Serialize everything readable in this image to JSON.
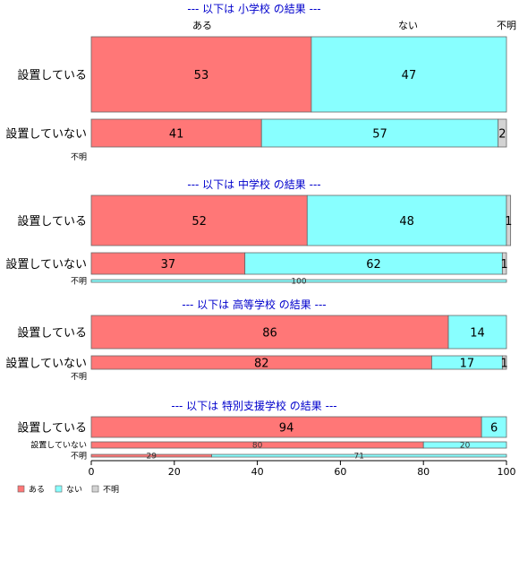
{
  "chart_data": {
    "type": "bar",
    "orientation": "horizontal",
    "stacked": true,
    "xlim": [
      0,
      100
    ],
    "x_ticks": [
      "0",
      "20",
      "40",
      "60",
      "80",
      "100"
    ],
    "category_headers": [
      "ある",
      "ない",
      "不明"
    ],
    "legend": {
      "placement": "bottom-left",
      "items": [
        {
          "label": "ある",
          "color": "#ff7777"
        },
        {
          "label": "ない",
          "color": "#88ffff"
        },
        {
          "label": "不明",
          "color": "#d3d3d3"
        }
      ]
    },
    "sections": [
      {
        "title": "--- 以下は 小学校 の結果 ---",
        "rows": [
          {
            "label": "設置している",
            "values": [
              53,
              47,
              0
            ],
            "labels": [
              "53",
              "47",
              ""
            ]
          },
          {
            "label": "設置していない",
            "values": [
              41,
              57,
              2
            ],
            "labels": [
              "41",
              "57",
              "2"
            ]
          },
          {
            "label": "不明",
            "values": [
              0,
              0,
              0
            ],
            "labels": [
              "",
              "",
              ""
            ]
          }
        ]
      },
      {
        "title": "--- 以下は 中学校 の結果 ---",
        "rows": [
          {
            "label": "設置している",
            "values": [
              52,
              48,
              1
            ],
            "labels": [
              "52",
              "48",
              "1"
            ]
          },
          {
            "label": "設置していない",
            "values": [
              37,
              62,
              1
            ],
            "labels": [
              "37",
              "62",
              "1"
            ]
          },
          {
            "label": "不明",
            "values": [
              0,
              100,
              0
            ],
            "labels": [
              "",
              "100",
              ""
            ]
          }
        ]
      },
      {
        "title": "--- 以下は 高等学校 の結果 ---",
        "rows": [
          {
            "label": "設置している",
            "values": [
              86,
              14,
              0
            ],
            "labels": [
              "86",
              "14",
              ""
            ]
          },
          {
            "label": "設置していない",
            "values": [
              82,
              17,
              1
            ],
            "labels": [
              "82",
              "17",
              "1"
            ]
          },
          {
            "label": "不明",
            "values": [
              0,
              0,
              0
            ],
            "labels": [
              "",
              "",
              ""
            ]
          }
        ]
      },
      {
        "title": "--- 以下は 特別支援学校 の結果 ---",
        "rows": [
          {
            "label": "設置している",
            "values": [
              94,
              6,
              0
            ],
            "labels": [
              "94",
              "6",
              ""
            ]
          },
          {
            "label": "設置していない",
            "values": [
              80,
              20,
              0
            ],
            "labels": [
              "80",
              "20",
              ""
            ]
          },
          {
            "label": "不明",
            "values": [
              29,
              71,
              0
            ],
            "labels": [
              "29",
              "71",
              ""
            ]
          }
        ]
      }
    ]
  }
}
